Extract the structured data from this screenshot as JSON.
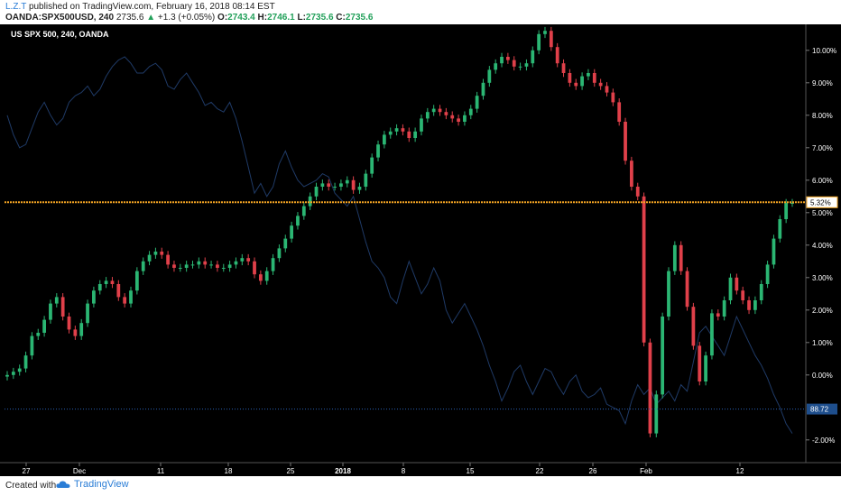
{
  "header": {
    "author": "L.Z.T",
    "published_text": "published on TradingView.com, February 16, 2018 08:14 EST",
    "symbol": "OANDA:SPX500USD, 240",
    "last": "2735.6",
    "change_arrow": "▲",
    "change": "+1.3 (+0.05%)",
    "o_label": "O:",
    "o_value": "2743.4",
    "h_label": "H:",
    "h_value": "2746.1",
    "l_label": "L:",
    "l_value": "2735.6",
    "c_label": "C:",
    "c_value": "2735.6"
  },
  "chart_title": "US SPX 500, 240, OANDA",
  "footer": {
    "created_with": "Created with",
    "brand": "TradingView"
  },
  "colors": {
    "background": "#000000",
    "candle_up": "#2bb673",
    "candle_down": "#e0404a",
    "overlay_line": "#1f3a66",
    "price_line": "#f5a623",
    "horizontal_line": "#2a5db0",
    "axis_text": "#ffffff"
  },
  "chart_data": {
    "type": "line",
    "title": "US SPX 500, 240, OANDA",
    "y_axis_ticks": [
      "10.00%",
      "9.00%",
      "8.00%",
      "7.00%",
      "6.00%",
      "5.00%",
      "4.00%",
      "3.00%",
      "2.00%",
      "1.00%",
      "0.00%",
      "-2.00%"
    ],
    "x_axis_ticks": [
      "27",
      "Dec",
      "11",
      "18",
      "25",
      "2018",
      "8",
      "15",
      "22",
      "26",
      "Feb",
      "12"
    ],
    "ylim": [
      -2.7,
      10.8
    ],
    "price_marker": "5.32%",
    "price_marker_value": 5.32,
    "line_marker": "88.72",
    "line_marker_value": -1.05,
    "series": [
      {
        "values": [
          0.0,
          0.1,
          0.2,
          0.6,
          1.2,
          1.3,
          1.7,
          2.2,
          2.4,
          1.8,
          1.4,
          1.2,
          1.6,
          2.2,
          2.6,
          2.8,
          2.9,
          2.8,
          2.4,
          2.2,
          2.6,
          3.2,
          3.5,
          3.7,
          3.8,
          3.7,
          3.4,
          3.3,
          3.3,
          3.4,
          3.4,
          3.5,
          3.4,
          3.4,
          3.3,
          3.3,
          3.4,
          3.5,
          3.6,
          3.5,
          3.1,
          2.9,
          3.2,
          3.6,
          3.9,
          4.2,
          4.6,
          4.9,
          5.2,
          5.5,
          5.8,
          5.9,
          5.8,
          5.8,
          5.9,
          6.0,
          5.7,
          5.8,
          6.2,
          6.7,
          7.1,
          7.4,
          7.5,
          7.6,
          7.5,
          7.3,
          7.5,
          7.9,
          8.1,
          8.2,
          8.1,
          8.0,
          7.9,
          7.8,
          8.0,
          8.2,
          8.6,
          9.0,
          9.4,
          9.6,
          9.8,
          9.7,
          9.5,
          9.5,
          9.6,
          10.0,
          10.5,
          10.6,
          10.1,
          9.6,
          9.3,
          9.0,
          8.9,
          9.2,
          9.3,
          9.0,
          8.9,
          8.7,
          8.4,
          7.8,
          6.6,
          5.8,
          5.5,
          1.0,
          -1.8,
          -0.6,
          1.8,
          3.2,
          4.0,
          3.2,
          2.1,
          0.9,
          -0.2,
          0.6,
          1.9,
          1.8,
          2.3,
          3.0,
          2.6,
          2.3,
          2.0,
          2.3,
          2.8,
          3.4,
          4.2,
          4.8,
          5.3,
          5.3
        ]
      },
      {
        "values": [
          8.0,
          7.4,
          7.0,
          7.1,
          7.6,
          8.1,
          8.4,
          8.0,
          7.7,
          7.9,
          8.4,
          8.6,
          8.7,
          8.9,
          8.6,
          8.8,
          9.2,
          9.5,
          9.7,
          9.8,
          9.6,
          9.3,
          9.3,
          9.5,
          9.6,
          9.4,
          8.9,
          8.8,
          9.1,
          9.3,
          9.0,
          8.7,
          8.3,
          8.4,
          8.2,
          8.1,
          8.4,
          7.9,
          7.2,
          6.4,
          5.6,
          5.9,
          5.5,
          5.8,
          6.5,
          6.9,
          6.4,
          6.0,
          5.8,
          5.9,
          6.0,
          6.2,
          6.1,
          5.6,
          5.4,
          5.2,
          5.5,
          4.8,
          4.1,
          3.5,
          3.3,
          3.0,
          2.4,
          2.2,
          2.9,
          3.5,
          3.0,
          2.5,
          2.8,
          3.3,
          2.9,
          2.0,
          1.6,
          1.9,
          2.2,
          1.8,
          1.4,
          0.9,
          0.3,
          -0.2,
          -0.8,
          -0.4,
          0.1,
          0.3,
          -0.2,
          -0.6,
          -0.2,
          0.2,
          0.1,
          -0.3,
          -0.6,
          -0.2,
          0.0,
          -0.5,
          -0.7,
          -0.6,
          -0.4,
          -0.9,
          -1.0,
          -1.1,
          -1.5,
          -0.8,
          -0.3,
          -0.6,
          -0.4,
          -0.9,
          -0.7,
          -0.5,
          -0.8,
          -0.3,
          -0.5,
          0.4,
          1.3,
          1.5,
          1.2,
          0.9,
          0.6,
          1.2,
          1.8,
          1.4,
          1.0,
          0.6,
          0.3,
          -0.1,
          -0.6,
          -1.0,
          -1.5,
          -1.8
        ]
      }
    ]
  }
}
